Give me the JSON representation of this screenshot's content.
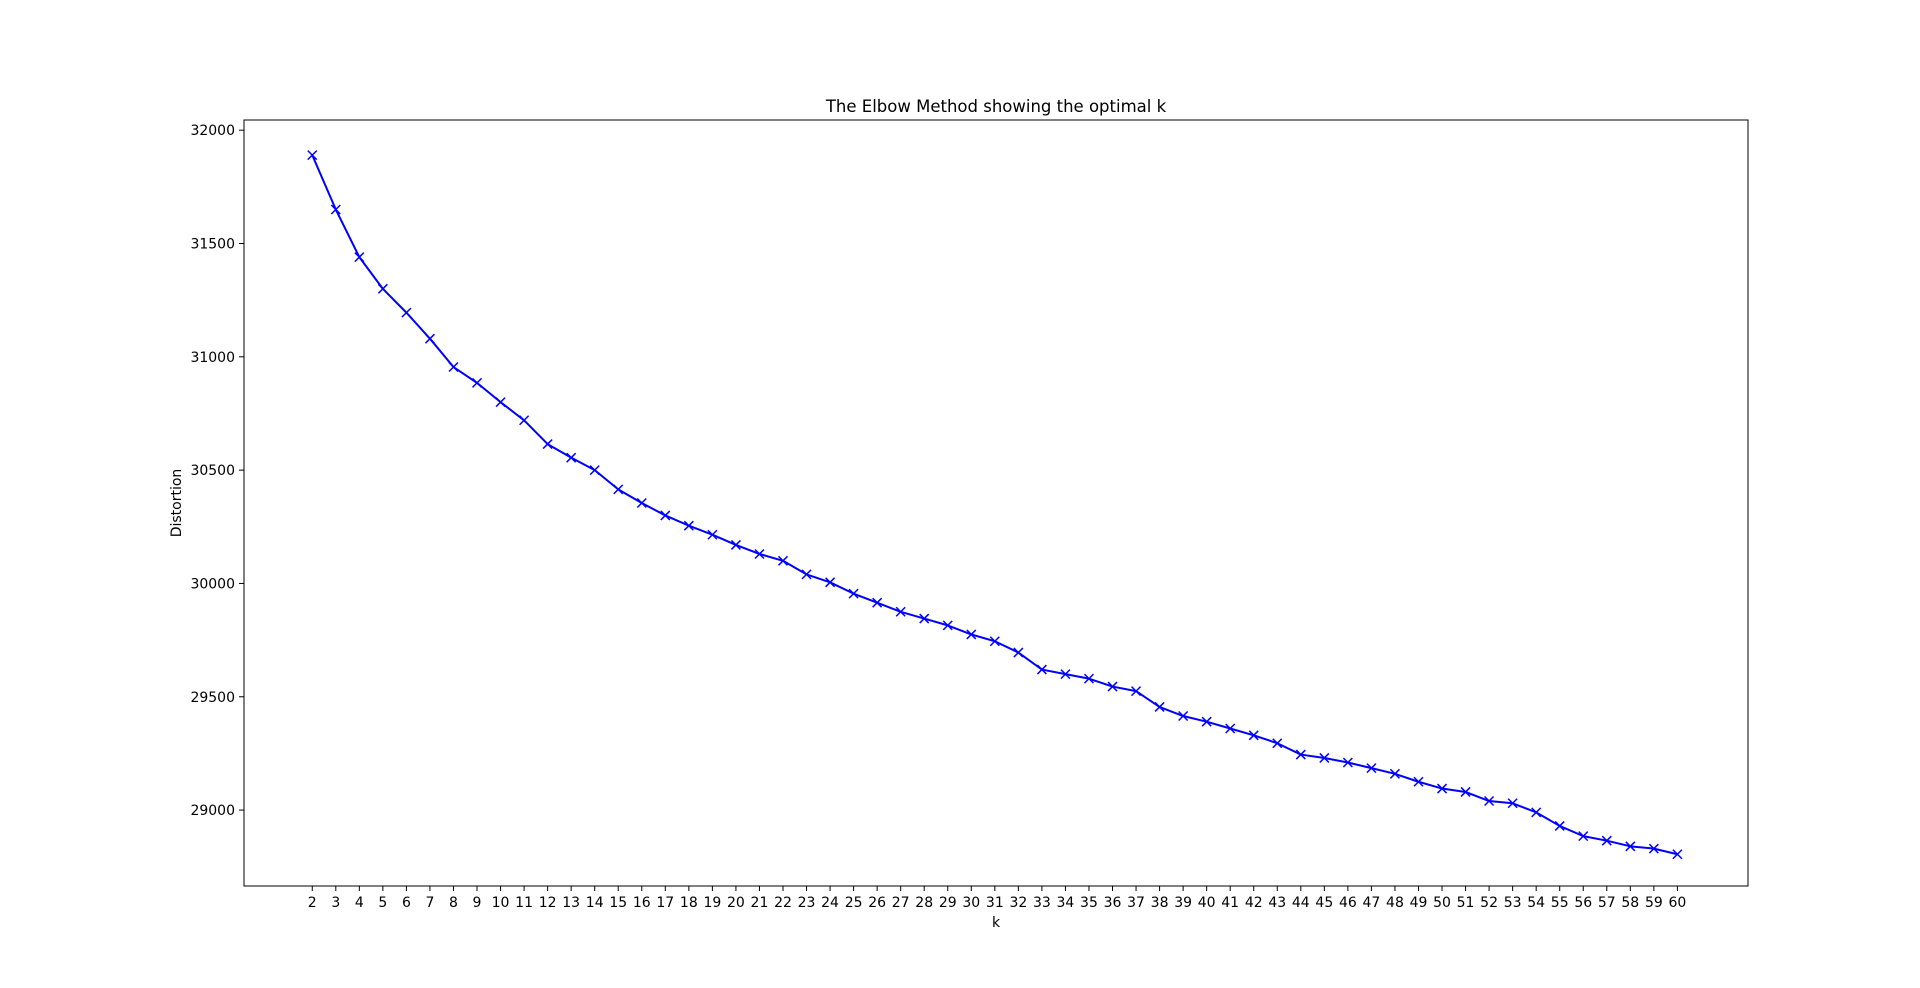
{
  "chart_data": {
    "type": "line",
    "title": "The Elbow Method showing the optimal k",
    "xlabel": "k",
    "ylabel": "Distortion",
    "x": [
      2,
      3,
      4,
      5,
      6,
      7,
      8,
      9,
      10,
      11,
      12,
      13,
      14,
      15,
      16,
      17,
      18,
      19,
      20,
      21,
      22,
      23,
      24,
      25,
      26,
      27,
      28,
      29,
      30,
      31,
      32,
      33,
      34,
      35,
      36,
      37,
      38,
      39,
      40,
      41,
      42,
      43,
      44,
      45,
      46,
      47,
      48,
      49,
      50,
      51,
      52,
      53,
      54,
      55,
      56,
      57,
      58,
      59,
      60
    ],
    "y": [
      31890,
      31650,
      31440,
      31300,
      31195,
      31080,
      30955,
      30885,
      30800,
      30720,
      30615,
      30555,
      30500,
      30415,
      30355,
      30300,
      30255,
      30215,
      30170,
      30130,
      30100,
      30040,
      30005,
      29955,
      29915,
      29875,
      29845,
      29815,
      29775,
      29745,
      29695,
      29620,
      29600,
      29580,
      29545,
      29525,
      29455,
      29415,
      29390,
      29360,
      29330,
      29295,
      29245,
      29230,
      29210,
      29185,
      29160,
      29125,
      29095,
      29080,
      29040,
      29030,
      28990,
      28930,
      28885,
      28865,
      28840,
      28830,
      28805
    ],
    "xticks": [
      "2",
      "3",
      "4",
      "5",
      "6",
      "7",
      "8",
      "9",
      "10",
      "11",
      "12",
      "13",
      "14",
      "15",
      "16",
      "17",
      "18",
      "19",
      "20",
      "21",
      "22",
      "23",
      "24",
      "25",
      "26",
      "27",
      "28",
      "29",
      "30",
      "31",
      "32",
      "33",
      "34",
      "35",
      "36",
      "37",
      "38",
      "39",
      "40",
      "41",
      "42",
      "43",
      "44",
      "45",
      "46",
      "47",
      "48",
      "49",
      "50",
      "51",
      "52",
      "53",
      "54",
      "55",
      "56",
      "57",
      "58",
      "59",
      "60"
    ],
    "yticks": [
      29000,
      29500,
      30000,
      30500,
      31000,
      31500,
      32000
    ],
    "ytick_labels": [
      "29000",
      "29500",
      "30000",
      "30500",
      "31000",
      "31500",
      "32000"
    ],
    "xlim": [
      -0.9,
      63.0
    ],
    "ylim": [
      28665,
      32045
    ],
    "marker": "x",
    "grid": false,
    "colors": {
      "line": "#0000ff",
      "axes": "#000000",
      "background": "#ffffff"
    }
  }
}
